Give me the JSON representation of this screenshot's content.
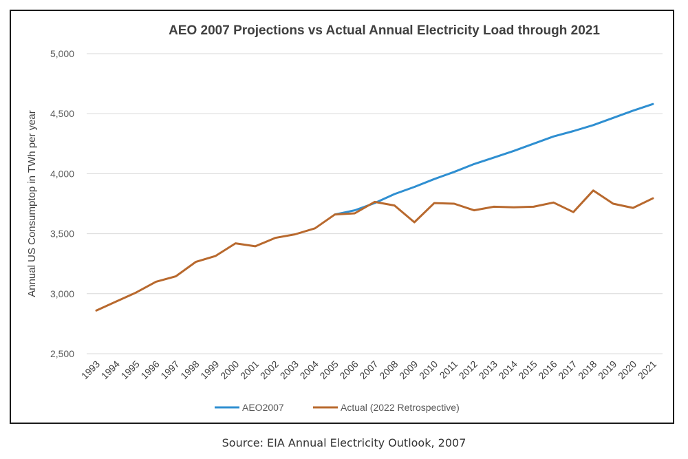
{
  "chart_data": {
    "type": "line",
    "title": "AEO 2007 Projections vs Actual Annual Electricity Load through 2021",
    "xlabel": "",
    "ylabel": "Annual US Consumptop in TWh per year",
    "ylim": [
      2500,
      5000
    ],
    "yticks": [
      2500,
      3000,
      3500,
      4000,
      4500,
      5000
    ],
    "ytick_labels": [
      "2,500",
      "3,000",
      "3,500",
      "4,000",
      "4,500",
      "5,000"
    ],
    "x": [
      "1993",
      "1994",
      "1995",
      "1996",
      "1997",
      "1998",
      "1999",
      "2000",
      "2001",
      "2002",
      "2003",
      "2004",
      "2005",
      "2006",
      "2007",
      "2008",
      "2009",
      "2010",
      "2011",
      "2012",
      "2013",
      "2014",
      "2015",
      "2016",
      "2017",
      "2018",
      "2019",
      "2020",
      "2021"
    ],
    "series": [
      {
        "name": "AEO2007",
        "color": "#2f8fd1",
        "values": [
          null,
          null,
          null,
          null,
          null,
          null,
          null,
          null,
          null,
          null,
          null,
          null,
          3660,
          3695,
          3755,
          3830,
          3890,
          3955,
          4015,
          4080,
          4135,
          4190,
          4250,
          4310,
          4355,
          4405,
          4465,
          4525,
          4580
        ]
      },
      {
        "name": "Actual (2022 Retrospective)",
        "color": "#b8692e",
        "values": [
          2860,
          2935,
          3010,
          3100,
          3145,
          3265,
          3315,
          3420,
          3395,
          3465,
          3495,
          3545,
          3660,
          3670,
          3765,
          3735,
          3595,
          3755,
          3750,
          3695,
          3725,
          3720,
          3725,
          3760,
          3680,
          3860,
          3750,
          3715,
          3795
        ]
      }
    ],
    "grid": true,
    "legend_position": "bottom"
  },
  "caption": "Source: EIA Annual Electricity Outlook, 2007"
}
